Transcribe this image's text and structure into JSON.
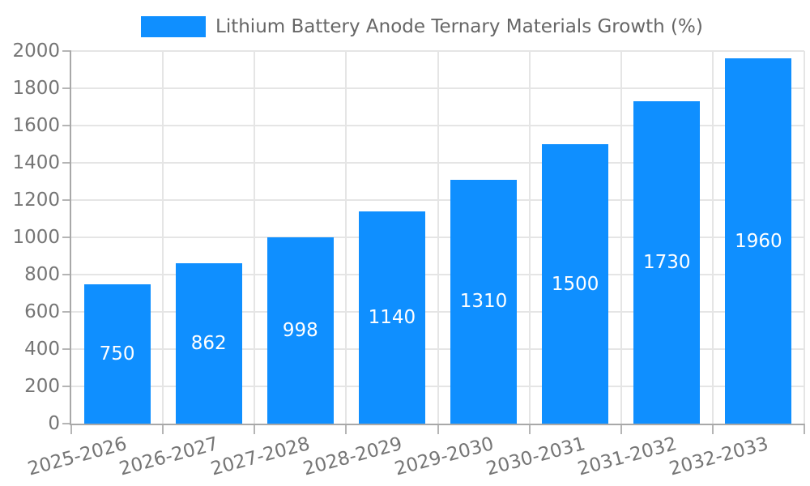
{
  "chart_data": {
    "type": "bar",
    "title": "Lithium Battery Anode Ternary Materials Growth (%)",
    "legend_entries": [
      "Lithium Battery Anode Ternary Materials Growth (%)"
    ],
    "legend_position": "top-center",
    "categories": [
      "2025-2026",
      "2026-2027",
      "2027-2028",
      "2028-2029",
      "2029-2030",
      "2030-2031",
      "2031-2032",
      "2032-2033"
    ],
    "values": [
      750,
      862,
      998,
      1140,
      1310,
      1500,
      1730,
      1960
    ],
    "value_labels": [
      "750",
      "862",
      "998",
      "1140",
      "1310",
      "1500",
      "1730",
      "1960"
    ],
    "xlabel": "",
    "ylabel": "",
    "ylim": [
      0,
      2000
    ],
    "ytick_step": 200,
    "yticks": [
      0,
      200,
      400,
      600,
      800,
      1000,
      1200,
      1400,
      1600,
      1800,
      2000
    ],
    "grid": "on",
    "x_label_rotation_deg": -15,
    "bar_color": "#0F8FFF",
    "value_label_color": "#FFFFFF",
    "axis_label_color": "#757575",
    "legend_text_color": "#666666",
    "gridline_color": "#E5E5E5",
    "axis_line_color": "#A8A8A8"
  }
}
